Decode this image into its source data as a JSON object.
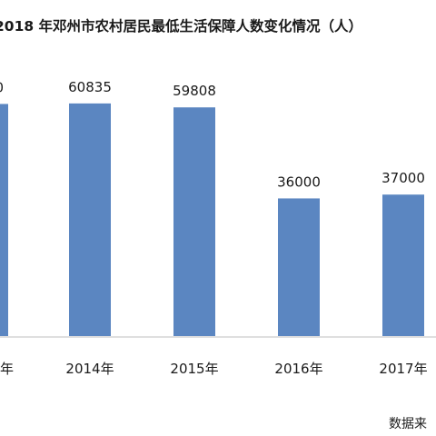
{
  "chart_data": {
    "type": "bar",
    "title": "2018 年邓州市农村居民最低生活保障人数变化情况（人）",
    "categories": [
      "年",
      "2014年",
      "2015年",
      "2016年",
      "2017年"
    ],
    "value_labels": [
      "0",
      "60835",
      "59808",
      "36000",
      "37000"
    ],
    "values": [
      null,
      60835,
      59808,
      36000,
      37000
    ],
    "ylim": [
      0,
      70000
    ],
    "grid": false,
    "legend": "none",
    "bar_color": "#5b86c1",
    "source_text": "数据来"
  }
}
